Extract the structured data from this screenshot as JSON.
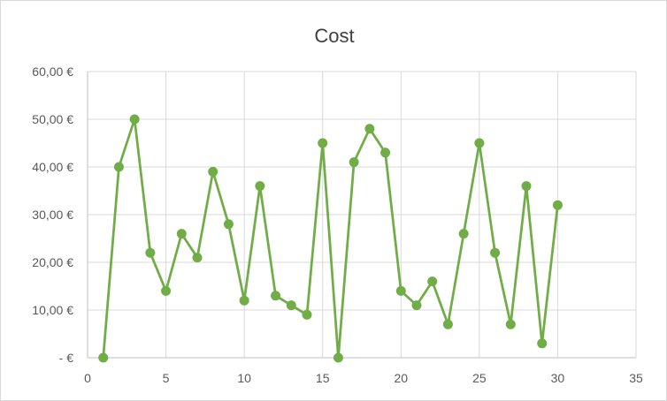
{
  "chart_data": {
    "type": "scatter",
    "title": "Cost",
    "xlabel": "",
    "ylabel": "",
    "xlim": [
      0,
      35
    ],
    "ylim": [
      0,
      60
    ],
    "x_ticks": [
      0,
      5,
      10,
      15,
      20,
      25,
      30,
      35
    ],
    "y_ticks": [
      0,
      10,
      20,
      30,
      40,
      50,
      60
    ],
    "x_tick_labels": [
      "0",
      "5",
      "10",
      "15",
      "20",
      "25",
      "30",
      "35"
    ],
    "y_tick_labels": [
      "-  €",
      "10,00 €",
      "20,00 €",
      "30,00 €",
      "40,00 €",
      "50,00 €",
      "60,00 €"
    ],
    "grid": true,
    "legend": "none",
    "series": [
      {
        "color": "#70ad47",
        "marker": "circle",
        "line": true,
        "x": [
          1,
          2,
          3,
          4,
          5,
          6,
          7,
          8,
          9,
          10,
          11,
          12,
          13,
          14,
          15,
          16,
          17,
          18,
          19,
          20,
          21,
          22,
          23,
          24,
          25,
          26,
          27,
          28,
          29,
          30
        ],
        "y": [
          0,
          40,
          50,
          22,
          14,
          26,
          21,
          39,
          28,
          12,
          36,
          13,
          11,
          9,
          45,
          0,
          41,
          48,
          43,
          14,
          11,
          16,
          7,
          26,
          45,
          22,
          7,
          36,
          3,
          32
        ]
      }
    ]
  }
}
